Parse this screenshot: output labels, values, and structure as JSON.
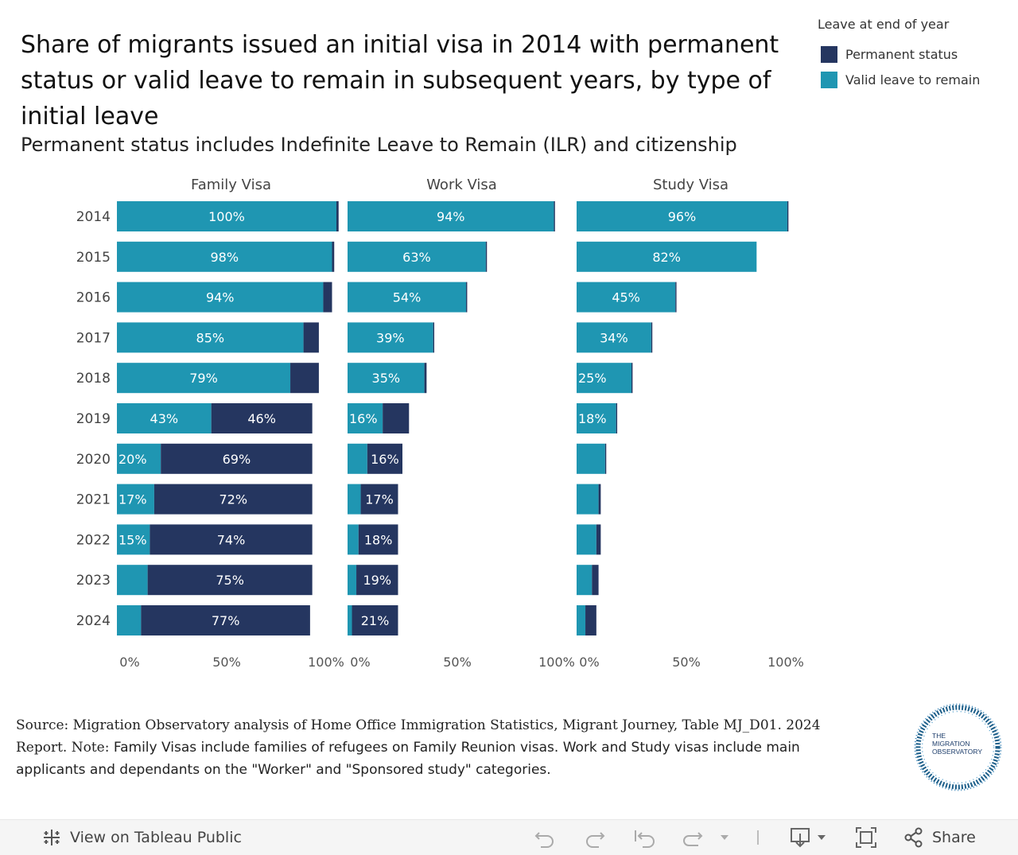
{
  "title": "Share of migrants issued an initial visa in 2014 with permanent status or valid leave to remain in subsequent years, by type of initial leave",
  "subtitle": "Permanent status includes Indefinite Leave to Remain (ILR) and citizenship",
  "legend": {
    "title": "Leave at end of year",
    "items": [
      {
        "label": "Permanent status",
        "color": "#253660"
      },
      {
        "label": "Valid leave to remain",
        "color": "#1f96b2"
      }
    ]
  },
  "chart_data": {
    "type": "bar",
    "orientation": "horizontal",
    "stacked": true,
    "categories": [
      "2014",
      "2015",
      "2016",
      "2017",
      "2018",
      "2019",
      "2020",
      "2021",
      "2022",
      "2023",
      "2024"
    ],
    "xlim": [
      0,
      100
    ],
    "x_ticks": [
      "0%",
      "50%",
      "100%"
    ],
    "colors": {
      "valid": "#1f96b2",
      "permanent": "#253660"
    },
    "panels": [
      {
        "name": "Family Visa",
        "valid": [
          100,
          98,
          94,
          85,
          79,
          43,
          20,
          17,
          15,
          14,
          11
        ],
        "permanent": [
          1,
          1,
          4,
          7,
          13,
          46,
          69,
          72,
          74,
          75,
          77
        ],
        "valid_labels": [
          "100%",
          "98%",
          "94%",
          "85%",
          "79%",
          "43%",
          "20%",
          "17%",
          "15%",
          "",
          ""
        ],
        "permanent_labels": [
          "",
          "",
          "",
          "",
          "",
          "46%",
          "69%",
          "72%",
          "74%",
          "75%",
          "77%"
        ]
      },
      {
        "name": "Work Visa",
        "valid": [
          94,
          63,
          54,
          39,
          35,
          16,
          9,
          6,
          5,
          4,
          2
        ],
        "permanent": [
          0.5,
          0.5,
          0.5,
          0.5,
          1,
          12,
          16,
          17,
          18,
          19,
          21
        ],
        "valid_labels": [
          "94%",
          "63%",
          "54%",
          "39%",
          "35%",
          "16%",
          "",
          "",
          "",
          "",
          ""
        ],
        "permanent_labels": [
          "",
          "",
          "",
          "",
          "",
          "",
          "16%",
          "17%",
          "18%",
          "19%",
          "21%"
        ]
      },
      {
        "name": "Study Visa",
        "valid": [
          96,
          82,
          45,
          34,
          25,
          18,
          13,
          10,
          9,
          7,
          4
        ],
        "permanent": [
          0.5,
          0,
          0.5,
          0.5,
          0.5,
          0.5,
          0.5,
          1,
          2,
          3,
          5
        ],
        "valid_labels": [
          "96%",
          "82%",
          "45%",
          "34%",
          "25%",
          "18%",
          "",
          "",
          "",
          "",
          ""
        ],
        "permanent_labels": [
          "",
          "",
          "",
          "",
          "",
          "",
          "",
          "",
          "",
          "",
          ""
        ]
      }
    ]
  },
  "source": {
    "prefix": "Source: Migration Observatory analysis of Home Office Immigration Statistics, Migrant Journey, Table MJ_D01. 2024 Report. Note:",
    "note": "Family Visas include families of refugees on Family Reunion visas. Work and Study visas include main applicants and dependants on the \"Worker\" and \"Sponsored study\" categories."
  },
  "logo": {
    "line1": "THE",
    "line2": "MIGRATION",
    "line3": "OBSERVATORY"
  },
  "toolbar": {
    "view_label": "View on Tableau Public",
    "share_label": "Share"
  }
}
